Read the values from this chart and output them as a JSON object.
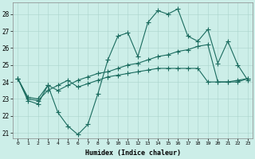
{
  "xlabel": "Humidex (Indice chaleur)",
  "background_color": "#cceee8",
  "line_color": "#1a6b5e",
  "xlim": [
    -0.5,
    23.5
  ],
  "ylim": [
    20.7,
    28.7
  ],
  "yticks": [
    21,
    22,
    23,
    24,
    25,
    26,
    27,
    28
  ],
  "xticks": [
    0,
    1,
    2,
    3,
    4,
    5,
    6,
    7,
    8,
    9,
    10,
    11,
    12,
    13,
    14,
    15,
    16,
    17,
    18,
    19,
    20,
    21,
    22,
    23
  ],
  "series1": [
    24.2,
    22.9,
    22.7,
    23.8,
    22.2,
    21.4,
    20.9,
    21.5,
    23.3,
    25.3,
    26.7,
    26.9,
    25.5,
    27.5,
    28.2,
    28.0,
    28.3,
    26.7,
    26.4,
    27.1,
    25.1,
    26.4,
    25.0,
    24.1
  ],
  "series2": [
    24.2,
    23.1,
    23.0,
    23.8,
    23.5,
    23.8,
    24.1,
    24.3,
    24.5,
    24.6,
    24.8,
    25.0,
    25.1,
    25.3,
    25.5,
    25.6,
    25.8,
    25.9,
    26.1,
    26.2,
    24.0,
    24.0,
    24.1,
    24.2
  ],
  "series3": [
    24.2,
    23.0,
    22.9,
    23.5,
    23.8,
    24.1,
    23.7,
    23.9,
    24.1,
    24.3,
    24.4,
    24.5,
    24.6,
    24.7,
    24.8,
    24.8,
    24.8,
    24.8,
    24.8,
    24.0,
    24.0,
    24.0,
    24.0,
    24.2
  ],
  "grid_color": "#aad4cc",
  "marker": "+",
  "markersize": 4,
  "linewidth": 0.8
}
